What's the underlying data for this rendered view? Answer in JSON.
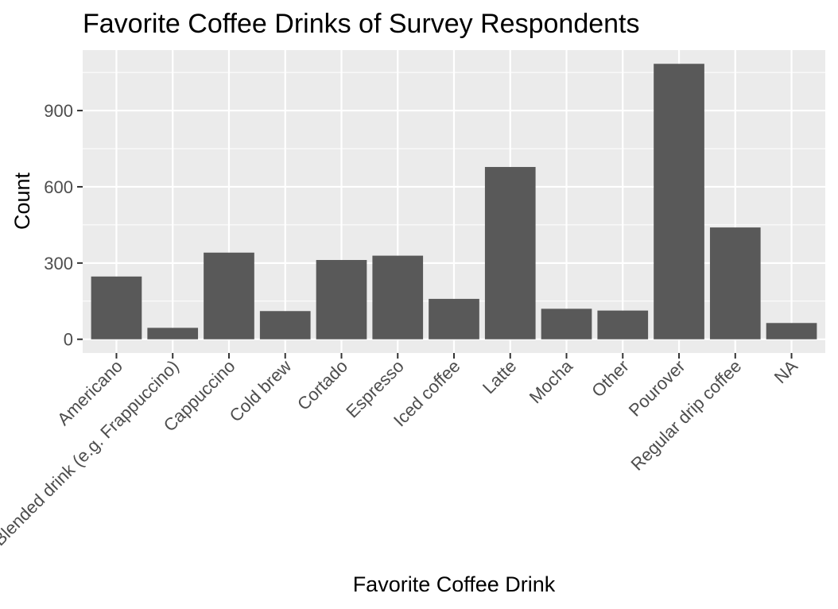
{
  "chart_data": {
    "type": "bar",
    "title": "Favorite Coffee Drinks of Survey Respondents",
    "xlabel": "Favorite Coffee Drink",
    "ylabel": "Count",
    "categories": [
      "Americano",
      "Blended drink (e.g. Frappuccino)",
      "Cappuccino",
      "Cold brew",
      "Cortado",
      "Espresso",
      "Iced coffee",
      "Latte",
      "Mocha",
      "Other",
      "Pourover",
      "Regular drip coffee",
      "NA"
    ],
    "values": [
      247,
      45,
      341,
      111,
      312,
      329,
      159,
      678,
      120,
      113,
      1084,
      440,
      64
    ],
    "yticks": [
      0,
      300,
      600,
      900
    ],
    "ylim": [
      -54,
      1138
    ],
    "grid": true,
    "bar_color": "#595959",
    "panel_background": "#ebebeb",
    "gridline_color": "#ffffff"
  }
}
